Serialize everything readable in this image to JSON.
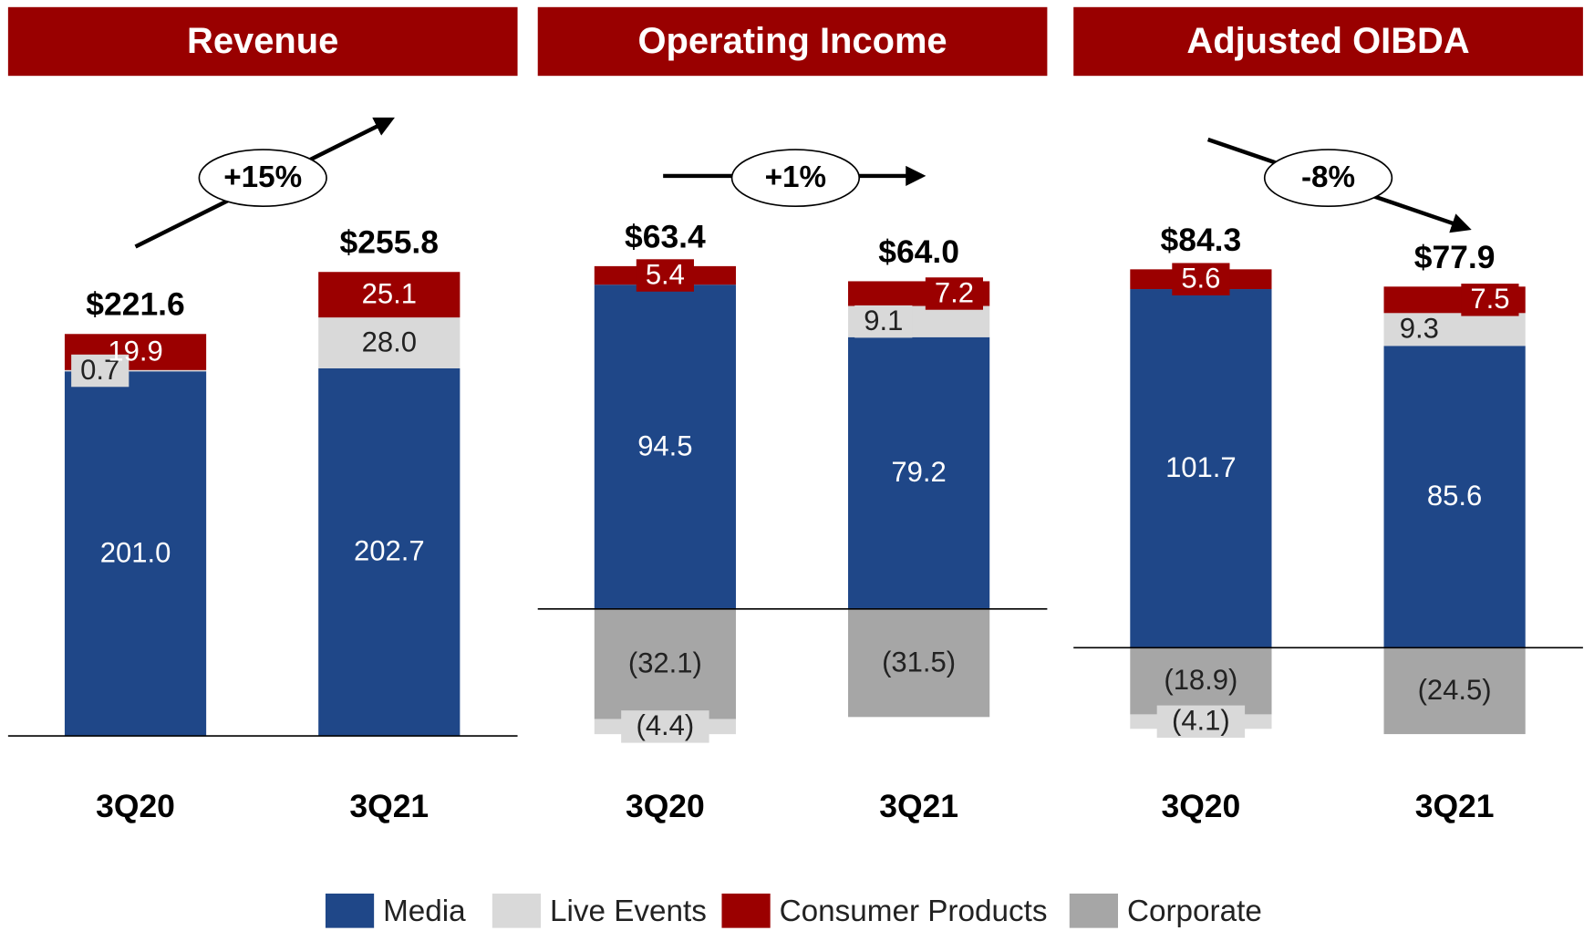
{
  "chart_data": [
    {
      "type": "bar",
      "title": "Revenue",
      "categories": [
        "3Q20",
        "3Q21"
      ],
      "ylim": [
        0,
        350
      ],
      "series": [
        {
          "values": [
            201.0,
            202.7
          ],
          "value_labels": [
            "201.0",
            "202.7"
          ]
        },
        {
          "values": [
            0.7,
            28.0
          ],
          "value_labels": [
            "0.7",
            "28.0"
          ]
        },
        {
          "values": [
            19.9,
            25.1
          ],
          "value_labels": [
            "19.9",
            "25.1"
          ]
        }
      ],
      "totals": {
        "values": [
          221.6,
          255.8
        ],
        "value_labels": [
          "$221.6",
          "$255.8"
        ]
      },
      "annotation": "+15%"
    },
    {
      "type": "bar",
      "title": "Operating Income",
      "categories": [
        "3Q20",
        "3Q21"
      ],
      "ylim": [
        -37,
        148
      ],
      "series": [
        {
          "values": [
            94.5,
            79.2
          ],
          "value_labels": [
            "94.5",
            "79.2"
          ]
        },
        {
          "values": [
            -4.4,
            9.1
          ],
          "value_labels": [
            "(4.4)",
            "9.1"
          ]
        },
        {
          "values": [
            5.4,
            7.2
          ],
          "value_labels": [
            "5.4",
            "7.2"
          ]
        },
        {
          "values": [
            -32.1,
            -31.5
          ],
          "value_labels": [
            "(32.1)",
            "(31.5)"
          ]
        }
      ],
      "totals": {
        "values": [
          63.4,
          64.0
        ],
        "value_labels": [
          "$63.4",
          "$64.0"
        ]
      },
      "annotation": "+1%"
    },
    {
      "type": "bar",
      "title": "Adjusted OIBDA",
      "categories": [
        "3Q20",
        "3Q21"
      ],
      "ylim": [
        -25,
        155
      ],
      "series": [
        {
          "values": [
            101.7,
            85.6
          ],
          "value_labels": [
            "101.7",
            "85.6"
          ]
        },
        {
          "values": [
            -4.1,
            9.3
          ],
          "value_labels": [
            "(4.1)",
            "9.3"
          ]
        },
        {
          "values": [
            5.6,
            7.5
          ],
          "value_labels": [
            "5.6",
            "7.5"
          ]
        },
        {
          "values": [
            -18.9,
            -24.5
          ],
          "value_labels": [
            "(18.9)",
            "(24.5)"
          ]
        }
      ],
      "totals": {
        "values": [
          84.3,
          77.9
        ],
        "value_labels": [
          "$84.3",
          "$77.9"
        ]
      },
      "annotation": "-8%"
    }
  ],
  "legend": {
    "items": [
      {
        "name": "Media",
        "color": "#1f4788"
      },
      {
        "name": "Live Events",
        "color": "#d9d9d9"
      },
      {
        "name": "Consumer Products",
        "color": "#9b0000"
      },
      {
        "name": "Corporate",
        "color": "#a6a6a6"
      }
    ]
  }
}
